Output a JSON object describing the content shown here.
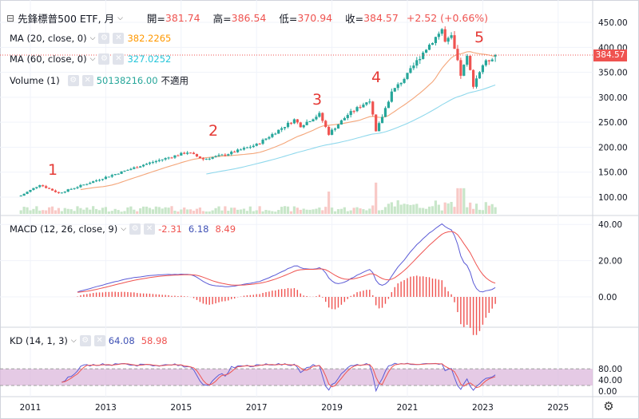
{
  "header": {
    "collapse_icon": "⊟",
    "symbol": "先鋒標普500 ETF, 月",
    "open_label": "開=",
    "open": "381.74",
    "high_label": "高=",
    "high": "386.54",
    "low_label": "低=",
    "low": "370.94",
    "close_label": "收=",
    "close": "384.57",
    "change": "+2.52 (+0.66%)"
  },
  "indicators": [
    {
      "label": "MA (20, close, 0)",
      "value": "382.2265",
      "color": "#ff9800"
    },
    {
      "label": "MA (60, close, 0)",
      "value": "327.0252",
      "color": "#26c6da"
    },
    {
      "label": "Volume (1)",
      "value": "50138216.00",
      "extra": "不適用",
      "color": "#26a69a"
    }
  ],
  "macd": {
    "label": "MACD (12, 26, close, 9)",
    "hist": "-2.31",
    "macd": "6.18",
    "signal": "8.49"
  },
  "kd": {
    "label": "KD (14, 1, 3)",
    "k": "64.08",
    "d": "58.98"
  },
  "annotations": [
    "1",
    "2",
    "3",
    "4",
    "5"
  ],
  "price_tag": "384.57",
  "settings_icon": "gear-icon",
  "colors": {
    "up": "#26a69a",
    "down": "#ef5350",
    "ma20": "#f4a67a",
    "ma60": "#8fd8ec",
    "macd": "#5b5bd6",
    "signal": "#ef5350",
    "kd_band": "#dcb8dc",
    "annot": "#e53935"
  },
  "chart_data": [
    {
      "type": "candlestick",
      "name": "price",
      "x_ticks": [
        "2011",
        "2013",
        "2015",
        "2017",
        "2019",
        "2021",
        "2023",
        "2025"
      ],
      "y_ticks": [
        "100.00",
        "150.00",
        "200.00",
        "250.00",
        "300.00",
        "350.00",
        "400.00",
        "450.00"
      ],
      "ylim": [
        65,
        465
      ],
      "close_path": [
        [
          "2010-10",
          103
        ],
        [
          "2011-04",
          125
        ],
        [
          "2011-10",
          108
        ],
        [
          "2012-06",
          125
        ],
        [
          "2013-01",
          140
        ],
        [
          "2014-01",
          165
        ],
        [
          "2015-03",
          190
        ],
        [
          "2015-08",
          176
        ],
        [
          "2016-03",
          185
        ],
        [
          "2017-01",
          205
        ],
        [
          "2018-01",
          255
        ],
        [
          "2018-03",
          243
        ],
        [
          "2018-09",
          266
        ],
        [
          "2018-12",
          227
        ],
        [
          "2019-06",
          265
        ],
        [
          "2020-01",
          295
        ],
        [
          "2020-03",
          230
        ],
        [
          "2020-08",
          310
        ],
        [
          "2021-01",
          345
        ],
        [
          "2021-06",
          390
        ],
        [
          "2021-12",
          436
        ],
        [
          "2022-01",
          410
        ],
        [
          "2022-03",
          420
        ],
        [
          "2022-06",
          345
        ],
        [
          "2022-08",
          380
        ],
        [
          "2022-10",
          325
        ],
        [
          "2023-01",
          365
        ],
        [
          "2023-05",
          384.57
        ]
      ]
    },
    {
      "type": "line",
      "name": "MACD",
      "y_ticks": [
        "40.00",
        "20.00",
        "0.00"
      ],
      "ylim": [
        -15,
        42
      ]
    },
    {
      "type": "line",
      "name": "KD",
      "y_ticks": [
        "80.00",
        "40.00",
        "0.00"
      ],
      "ylim": [
        -5,
        100
      ]
    }
  ]
}
